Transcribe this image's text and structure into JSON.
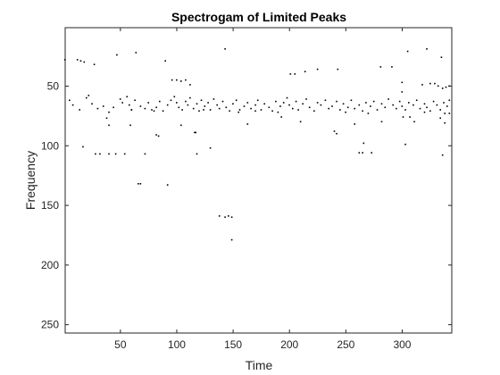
{
  "chart_data": {
    "type": "scatter",
    "title": "Spectrogam of Limited Peaks",
    "xlabel": "Time",
    "ylabel": "Frequency",
    "xlim": [
      1,
      344
    ],
    "ylim": [
      1,
      257
    ],
    "y_reversed": true,
    "grid": false,
    "x_ticks": [
      50,
      100,
      150,
      200,
      250,
      300
    ],
    "y_ticks": [
      50,
      100,
      150,
      200,
      250
    ],
    "marker_color": "#000000",
    "series": [
      {
        "points": [
          [
            1,
            28
          ],
          [
            12,
            28
          ],
          [
            15,
            29
          ],
          [
            18,
            30
          ],
          [
            27,
            32
          ],
          [
            90,
            29
          ],
          [
            143,
            19
          ],
          [
            305,
            21
          ],
          [
            322,
            19
          ],
          [
            335,
            26
          ],
          [
            5,
            62
          ],
          [
            8,
            66
          ],
          [
            14,
            70
          ],
          [
            20,
            60
          ],
          [
            22,
            58
          ],
          [
            25,
            65
          ],
          [
            30,
            69
          ],
          [
            35,
            67
          ],
          [
            40,
            72
          ],
          [
            44,
            68
          ],
          [
            50,
            61
          ],
          [
            52,
            64
          ],
          [
            56,
            59
          ],
          [
            58,
            66
          ],
          [
            60,
            70
          ],
          [
            63,
            62
          ],
          [
            68,
            67
          ],
          [
            72,
            69
          ],
          [
            75,
            64
          ],
          [
            78,
            70
          ],
          [
            82,
            68
          ],
          [
            85,
            63
          ],
          [
            88,
            71
          ],
          [
            92,
            66
          ],
          [
            95,
            62
          ],
          [
            98,
            59
          ],
          [
            100,
            64
          ],
          [
            102,
            68
          ],
          [
            105,
            70
          ],
          [
            108,
            63
          ],
          [
            110,
            66
          ],
          [
            112,
            60
          ],
          [
            115,
            69
          ],
          [
            118,
            65
          ],
          [
            120,
            71
          ],
          [
            122,
            62
          ],
          [
            125,
            67
          ],
          [
            128,
            64
          ],
          [
            130,
            70
          ],
          [
            133,
            61
          ],
          [
            136,
            66
          ],
          [
            138,
            69
          ],
          [
            141,
            63
          ],
          [
            144,
            68
          ],
          [
            147,
            71
          ],
          [
            150,
            65
          ],
          [
            153,
            62
          ],
          [
            156,
            70
          ],
          [
            160,
            67
          ],
          [
            163,
            64
          ],
          [
            166,
            69
          ],
          [
            170,
            66
          ],
          [
            172,
            62
          ],
          [
            175,
            70
          ],
          [
            178,
            65
          ],
          [
            182,
            68
          ],
          [
            185,
            71
          ],
          [
            188,
            63
          ],
          [
            192,
            67
          ],
          [
            195,
            64
          ],
          [
            198,
            60
          ],
          [
            200,
            66
          ],
          [
            203,
            69
          ],
          [
            206,
            63
          ],
          [
            208,
            70
          ],
          [
            212,
            65
          ],
          [
            215,
            61
          ],
          [
            218,
            68
          ],
          [
            222,
            71
          ],
          [
            225,
            64
          ],
          [
            228,
            66
          ],
          [
            232,
            62
          ],
          [
            235,
            69
          ],
          [
            238,
            67
          ],
          [
            242,
            63
          ],
          [
            245,
            70
          ],
          [
            248,
            65
          ],
          [
            252,
            68
          ],
          [
            255,
            62
          ],
          [
            258,
            69
          ],
          [
            262,
            66
          ],
          [
            265,
            71
          ],
          [
            268,
            64
          ],
          [
            272,
            67
          ],
          [
            275,
            63
          ],
          [
            278,
            70
          ],
          [
            282,
            65
          ],
          [
            285,
            68
          ],
          [
            288,
            61
          ],
          [
            292,
            66
          ],
          [
            295,
            69
          ],
          [
            298,
            63
          ],
          [
            300,
            67
          ],
          [
            303,
            70
          ],
          [
            306,
            64
          ],
          [
            310,
            66
          ],
          [
            313,
            62
          ],
          [
            316,
            69
          ],
          [
            320,
            65
          ],
          [
            322,
            68
          ],
          [
            325,
            71
          ],
          [
            328,
            63
          ],
          [
            331,
            66
          ],
          [
            334,
            70
          ],
          [
            337,
            64
          ],
          [
            340,
            67
          ],
          [
            342,
            62
          ],
          [
            96,
            45
          ],
          [
            100,
            45
          ],
          [
            104,
            46
          ],
          [
            108,
            45
          ],
          [
            112,
            49
          ],
          [
            201,
            40
          ],
          [
            205,
            40
          ],
          [
            214,
            38
          ],
          [
            225,
            36
          ],
          [
            243,
            36
          ],
          [
            281,
            34
          ],
          [
            291,
            34
          ],
          [
            325,
            48
          ],
          [
            329,
            48
          ],
          [
            332,
            50
          ],
          [
            336,
            52
          ],
          [
            339,
            51
          ],
          [
            342,
            50
          ],
          [
            318,
            49
          ],
          [
            300,
            55
          ],
          [
            60,
            70
          ],
          [
            80,
            71
          ],
          [
            124,
            70
          ],
          [
            155,
            72
          ],
          [
            170,
            71
          ],
          [
            190,
            72
          ],
          [
            250,
            72
          ],
          [
            270,
            73
          ],
          [
            320,
            72
          ],
          [
            338,
            73
          ],
          [
            17,
            101
          ],
          [
            38,
            77
          ],
          [
            40,
            83
          ],
          [
            59,
            83
          ],
          [
            28,
            107
          ],
          [
            32,
            107
          ],
          [
            40,
            107
          ],
          [
            46,
            107
          ],
          [
            54,
            107
          ],
          [
            72,
            107
          ],
          [
            82,
            91
          ],
          [
            84,
            92
          ],
          [
            92,
            133
          ],
          [
            104,
            83
          ],
          [
            116,
            89
          ],
          [
            117,
            89
          ],
          [
            118,
            107
          ],
          [
            130,
            102
          ],
          [
            163,
            82
          ],
          [
            193,
            76
          ],
          [
            210,
            80
          ],
          [
            240,
            88
          ],
          [
            242,
            90
          ],
          [
            258,
            82
          ],
          [
            262,
            106
          ],
          [
            265,
            106
          ],
          [
            266,
            98
          ],
          [
            273,
            106
          ],
          [
            282,
            80
          ],
          [
            301,
            76
          ],
          [
            303,
            99
          ],
          [
            307,
            76
          ],
          [
            311,
            80
          ],
          [
            336,
            108
          ],
          [
            338,
            81
          ],
          [
            342,
            73
          ],
          [
            334,
            77
          ],
          [
            66,
            132
          ],
          [
            68,
            132
          ],
          [
            138,
            159
          ],
          [
            143,
            160
          ],
          [
            146,
            159
          ],
          [
            149,
            160
          ],
          [
            149,
            179
          ],
          [
            64,
            22
          ],
          [
            47,
            24
          ],
          [
            300,
            47
          ]
        ]
      }
    ]
  }
}
